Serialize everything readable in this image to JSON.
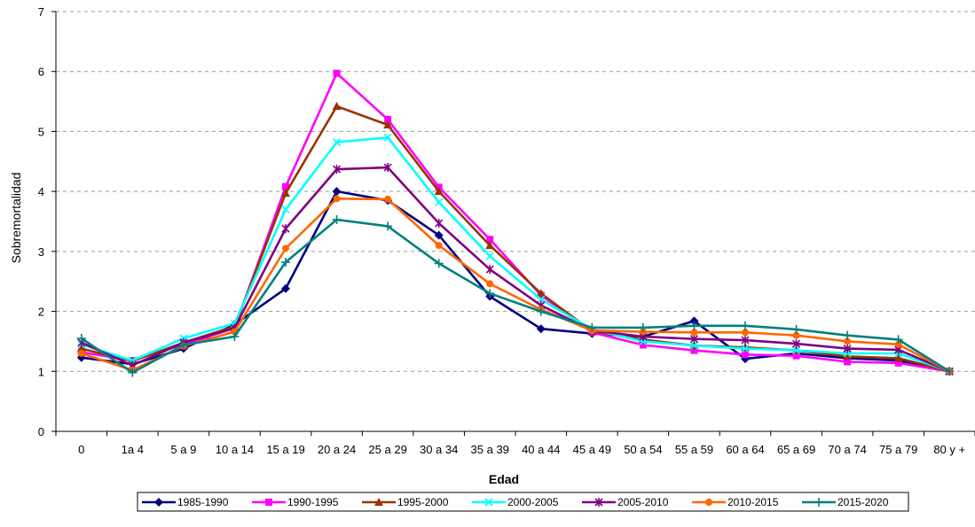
{
  "chart_data": {
    "type": "line",
    "title": "",
    "xlabel": "Edad",
    "ylabel": "Sobremortalidad",
    "ylim": [
      0,
      7
    ],
    "yticks": [
      0,
      1,
      2,
      3,
      4,
      5,
      6,
      7
    ],
    "grid": "horizontal-dashed",
    "legend_position": "bottom",
    "categories": [
      "0",
      "1a 4",
      "5 a 9",
      "10 a 14",
      "15 a 19",
      "20 a 24",
      "25 a 29",
      "30 a 34",
      "35 a 39",
      "40 a 44",
      "45 a 49",
      "50 a 54",
      "55 a 59",
      "60 a 64",
      "65 a 69",
      "70 a 74",
      "75 a 79",
      "80 y +"
    ],
    "series": [
      {
        "name": "1985-1990",
        "color": "#000080",
        "marker": "diamond",
        "values": [
          1.23,
          1.12,
          1.38,
          1.78,
          2.38,
          4.0,
          3.85,
          3.27,
          2.25,
          1.71,
          1.63,
          1.58,
          1.84,
          1.21,
          1.3,
          1.22,
          1.18,
          1.0
        ]
      },
      {
        "name": "1990-1995",
        "color": "#FF00FF",
        "marker": "square",
        "values": [
          1.32,
          1.18,
          1.45,
          1.72,
          4.08,
          5.97,
          5.2,
          4.07,
          3.2,
          2.27,
          1.65,
          1.44,
          1.35,
          1.28,
          1.26,
          1.16,
          1.14,
          1.0
        ]
      },
      {
        "name": "1995-2000",
        "color": "#993300",
        "marker": "triangle",
        "values": [
          1.38,
          1.17,
          1.48,
          1.75,
          3.97,
          5.42,
          5.11,
          4.0,
          3.1,
          2.3,
          1.67,
          1.53,
          1.43,
          1.4,
          1.35,
          1.25,
          1.22,
          1.0
        ]
      },
      {
        "name": "2000-2005",
        "color": "#00FFFF",
        "marker": "x",
        "values": [
          1.45,
          1.18,
          1.55,
          1.8,
          3.7,
          4.82,
          4.9,
          3.82,
          2.92,
          2.2,
          1.7,
          1.5,
          1.43,
          1.38,
          1.35,
          1.3,
          1.3,
          1.0
        ]
      },
      {
        "name": "2005-2010",
        "color": "#800080",
        "marker": "star",
        "values": [
          1.48,
          1.1,
          1.48,
          1.72,
          3.38,
          4.37,
          4.4,
          3.47,
          2.7,
          2.1,
          1.68,
          1.58,
          1.54,
          1.52,
          1.46,
          1.38,
          1.36,
          1.0
        ]
      },
      {
        "name": "2010-2015",
        "color": "#FF6600",
        "marker": "circle",
        "values": [
          1.3,
          1.02,
          1.42,
          1.66,
          3.05,
          3.88,
          3.87,
          3.1,
          2.46,
          2.03,
          1.68,
          1.66,
          1.65,
          1.65,
          1.6,
          1.5,
          1.45,
          1.0
        ]
      },
      {
        "name": "2015-2020",
        "color": "#008080",
        "marker": "plus",
        "values": [
          1.55,
          0.98,
          1.44,
          1.58,
          2.82,
          3.53,
          3.42,
          2.8,
          2.3,
          2.0,
          1.73,
          1.73,
          1.76,
          1.76,
          1.7,
          1.6,
          1.53,
          1.0
        ]
      }
    ]
  }
}
